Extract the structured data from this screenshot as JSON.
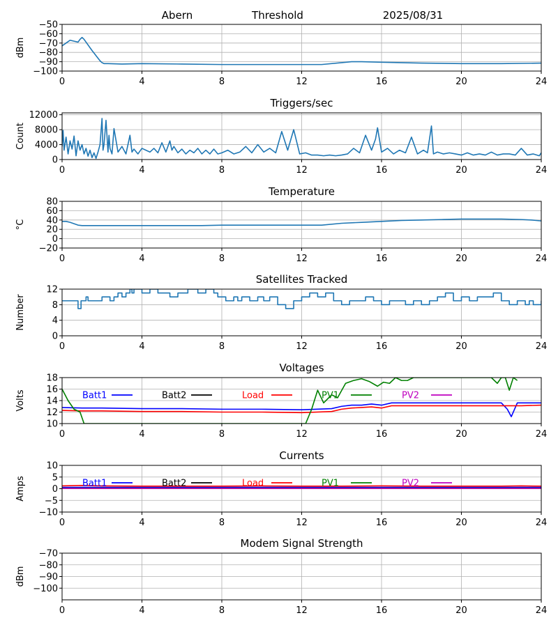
{
  "header": {
    "station": "Abern",
    "plot_name": "Threshold",
    "date": "2025/08/31"
  },
  "chart_data": [
    {
      "id": "threshold",
      "type": "line",
      "title": "",
      "xlabel": "",
      "ylabel": "dBm",
      "xlim": [
        0,
        24
      ],
      "ylim": [
        -100,
        -50
      ],
      "xticks": [
        0,
        4,
        8,
        12,
        16,
        20,
        24
      ],
      "yticks": [
        -100,
        -90,
        -80,
        -70,
        -60,
        -50
      ],
      "grid": true,
      "series": [
        {
          "color": "#1f77b4",
          "x": [
            0,
            0.2,
            0.4,
            0.6,
            0.8,
            0.9,
            1.0,
            1.1,
            1.5,
            1.9,
            2.0,
            2.1,
            2.3,
            3,
            4,
            6,
            8,
            10,
            12,
            13,
            14,
            14.5,
            15,
            16,
            17,
            18,
            20,
            22,
            24
          ],
          "y": [
            -73,
            -70,
            -67,
            -68,
            -69,
            -66,
            -64,
            -66,
            -78,
            -89,
            -91,
            -92,
            -92,
            -92.5,
            -92,
            -92.5,
            -93,
            -93,
            -93,
            -93,
            -91,
            -90,
            -90,
            -90.5,
            -91,
            -91.5,
            -92,
            -92,
            -91.5
          ]
        }
      ]
    },
    {
      "id": "triggers",
      "type": "line",
      "title": "Triggers/sec",
      "xlabel": "",
      "ylabel": "Count",
      "xlim": [
        0,
        24
      ],
      "ylim": [
        0,
        12500
      ],
      "xticks": [
        0,
        4,
        8,
        12,
        16,
        20,
        24
      ],
      "yticks": [
        0,
        4000,
        8000,
        12000
      ],
      "grid": true,
      "series": [
        {
          "color": "#1f77b4",
          "x": [
            0,
            0.05,
            0.1,
            0.2,
            0.3,
            0.4,
            0.5,
            0.6,
            0.7,
            0.8,
            0.9,
            1.0,
            1.1,
            1.2,
            1.3,
            1.4,
            1.5,
            1.6,
            1.7,
            1.8,
            1.9,
            2.0,
            2.05,
            2.1,
            2.2,
            2.3,
            2.35,
            2.4,
            2.5,
            2.6,
            2.8,
            3.0,
            3.2,
            3.4,
            3.5,
            3.6,
            3.8,
            4.0,
            4.2,
            4.4,
            4.6,
            4.8,
            5.0,
            5.2,
            5.4,
            5.5,
            5.6,
            5.8,
            6.0,
            6.2,
            6.4,
            6.6,
            6.8,
            7.0,
            7.2,
            7.4,
            7.6,
            7.8,
            8.0,
            8.3,
            8.6,
            8.9,
            9.2,
            9.5,
            9.8,
            10.1,
            10.4,
            10.7,
            11.0,
            11.3,
            11.6,
            11.9,
            12.2,
            12.5,
            12.8,
            13.1,
            13.4,
            13.7,
            14.0,
            14.3,
            14.6,
            14.9,
            15.2,
            15.5,
            15.7,
            15.8,
            16.0,
            16.3,
            16.6,
            16.9,
            17.2,
            17.5,
            17.8,
            18.1,
            18.3,
            18.5,
            18.6,
            18.8,
            19.1,
            19.4,
            19.7,
            20.0,
            20.3,
            20.6,
            20.9,
            21.2,
            21.5,
            21.8,
            22.1,
            22.4,
            22.7,
            23.0,
            23.3,
            23.6,
            23.9,
            24.0
          ],
          "y": [
            3500,
            7800,
            2500,
            6000,
            1500,
            5000,
            2800,
            6300,
            1000,
            5000,
            2500,
            4000,
            1500,
            3000,
            900,
            2500,
            500,
            1800,
            300,
            2000,
            4000,
            11000,
            2500,
            4000,
            10500,
            2000,
            6500,
            3000,
            1500,
            8300,
            2000,
            3500,
            1500,
            6500,
            2000,
            2800,
            1500,
            3000,
            2500,
            2000,
            3000,
            1800,
            4500,
            2000,
            5000,
            2500,
            3500,
            1800,
            2800,
            1500,
            2500,
            1800,
            3000,
            1500,
            2500,
            1500,
            2800,
            1500,
            1800,
            2500,
            1500,
            2000,
            3500,
            1800,
            4000,
            2000,
            3000,
            1800,
            7500,
            2500,
            8000,
            1500,
            1800,
            1200,
            1200,
            1000,
            1200,
            1000,
            1200,
            1500,
            3000,
            1800,
            6500,
            2500,
            5500,
            8500,
            2000,
            3000,
            1500,
            2500,
            1800,
            6000,
            1500,
            2500,
            1800,
            9000,
            1500,
            2000,
            1500,
            1800,
            1500,
            1200,
            1800,
            1200,
            1500,
            1200,
            2000,
            1200,
            1500,
            1500,
            1200,
            3000,
            1200,
            1500,
            1000,
            1800
          ]
        }
      ]
    },
    {
      "id": "temperature",
      "type": "line",
      "title": "Temperature",
      "xlabel": "",
      "ylabel": "°C",
      "xlim": [
        0,
        24
      ],
      "ylim": [
        -20,
        80
      ],
      "xticks": [
        0,
        4,
        8,
        12,
        16,
        20,
        24
      ],
      "yticks": [
        -20,
        0,
        20,
        40,
        60,
        80
      ],
      "grid": true,
      "series": [
        {
          "color": "#1f77b4",
          "x": [
            0,
            0.2,
            0.4,
            0.6,
            0.8,
            1.0,
            2,
            3,
            4,
            5,
            6,
            7,
            8,
            9,
            10,
            11,
            12,
            13,
            14,
            15,
            16,
            17,
            18,
            19,
            20,
            21,
            22,
            23,
            23.5,
            24
          ],
          "y": [
            37,
            37,
            35,
            32,
            29,
            28,
            28,
            28,
            28,
            28,
            28,
            28,
            29,
            29,
            29,
            29,
            29,
            29,
            33,
            35,
            37,
            39,
            40,
            41,
            42,
            42,
            42,
            41,
            40,
            38
          ]
        }
      ]
    },
    {
      "id": "satellites",
      "type": "line",
      "title": "Satellites Tracked",
      "xlabel": "",
      "ylabel": "Number",
      "xlim": [
        0,
        24
      ],
      "ylim": [
        0,
        12
      ],
      "xticks": [
        0,
        4,
        8,
        12,
        16,
        20,
        24
      ],
      "yticks": [
        0,
        4,
        8,
        12
      ],
      "grid": true,
      "series": [
        {
          "color": "#1f77b4",
          "step": true,
          "x": [
            0,
            0.8,
            0.95,
            1.1,
            1.2,
            1.3,
            1.7,
            2.0,
            2.4,
            2.6,
            2.8,
            3.0,
            3.2,
            3.4,
            3.5,
            3.6,
            4.0,
            4.4,
            4.8,
            5.0,
            5.4,
            5.8,
            6.0,
            6.3,
            6.8,
            7.2,
            7.6,
            7.8,
            8.2,
            8.6,
            8.8,
            9.0,
            9.4,
            9.8,
            10.1,
            10.4,
            10.8,
            11.2,
            11.6,
            12.0,
            12.4,
            12.8,
            13.2,
            13.6,
            14.0,
            14.4,
            14.8,
            15.2,
            15.6,
            16.0,
            16.4,
            16.8,
            17.2,
            17.6,
            18.0,
            18.4,
            18.8,
            19.2,
            19.6,
            20.0,
            20.4,
            20.8,
            21.2,
            21.6,
            22.0,
            22.4,
            22.8,
            23.2,
            23.4,
            23.6,
            24.0
          ],
          "y": [
            9,
            7,
            9,
            9,
            10,
            9,
            9,
            10,
            9,
            10,
            11,
            10,
            11,
            12,
            11,
            12,
            11,
            12,
            11,
            11,
            10,
            11,
            11,
            12,
            11,
            12,
            11,
            10,
            9,
            10,
            9,
            10,
            9,
            10,
            9,
            10,
            8,
            7,
            9,
            10,
            11,
            10,
            11,
            9,
            8,
            9,
            9,
            10,
            9,
            8,
            9,
            9,
            8,
            9,
            8,
            9,
            10,
            11,
            9,
            10,
            9,
            10,
            10,
            11,
            9,
            8,
            9,
            8,
            9,
            8,
            9
          ]
        }
      ]
    },
    {
      "id": "voltages",
      "type": "line",
      "title": "Voltages",
      "xlabel": "",
      "ylabel": "Volts",
      "xlim": [
        0,
        24
      ],
      "ylim": [
        10,
        18
      ],
      "xticks": [
        0,
        4,
        8,
        12,
        16,
        20,
        24
      ],
      "yticks": [
        10,
        12,
        14,
        16,
        18
      ],
      "grid": true,
      "legend": "inside-top",
      "series": [
        {
          "name": "Batt1",
          "color": "#0000ff",
          "x": [
            0,
            1,
            2,
            4,
            6,
            8,
            10,
            12,
            13.5,
            14,
            14.5,
            15,
            15.5,
            16,
            16.5,
            17,
            18,
            20,
            22,
            22.3,
            22.5,
            22.8,
            23,
            24
          ],
          "y": [
            12.8,
            12.7,
            12.7,
            12.6,
            12.6,
            12.5,
            12.5,
            12.4,
            12.6,
            13.0,
            13.2,
            13.2,
            13.4,
            13.2,
            13.6,
            13.6,
            13.6,
            13.6,
            13.6,
            12.5,
            11.2,
            13.6,
            13.6,
            13.6
          ]
        },
        {
          "name": "Load",
          "color": "#ff0000",
          "x": [
            0,
            1,
            2,
            4,
            6,
            8,
            10,
            12,
            13.5,
            14,
            14.5,
            15,
            15.5,
            16,
            16.5,
            17,
            18,
            20,
            22,
            23,
            24
          ],
          "y": [
            12.3,
            12.2,
            12.2,
            12.1,
            12.1,
            12.0,
            12.0,
            11.9,
            12.1,
            12.5,
            12.7,
            12.8,
            12.9,
            12.7,
            13.1,
            13.1,
            13.1,
            13.1,
            13.1,
            13.1,
            13.2
          ]
        },
        {
          "name": "PV1",
          "color": "#008000",
          "x": [
            0,
            0.3,
            0.6,
            0.9,
            1.1,
            12.2,
            12.5,
            12.8,
            13.1,
            13.5,
            13.8,
            14.2,
            14.6,
            15.0,
            15.4,
            15.8,
            16.1,
            16.4,
            16.7,
            17.0,
            17.3,
            17.6,
            21.5,
            21.8,
            22.0,
            22.2,
            22.4,
            22.6,
            22.8
          ],
          "y": [
            16,
            14,
            12.5,
            12,
            10,
            10,
            12.5,
            15.8,
            13.6,
            15,
            14.5,
            17,
            17.5,
            17.8,
            17.3,
            16.5,
            17.2,
            17,
            18,
            17.5,
            17.5,
            18,
            18,
            17,
            18,
            18,
            15.8,
            18,
            17.5
          ]
        },
        {
          "name": "Batt2",
          "color": "#000000",
          "x": [],
          "y": []
        },
        {
          "name": "PV2",
          "color": "#bf00bf",
          "x": [],
          "y": []
        }
      ]
    },
    {
      "id": "currents",
      "type": "line",
      "title": "Currents",
      "xlabel": "",
      "ylabel": "Amps",
      "xlim": [
        0,
        24
      ],
      "ylim": [
        -10,
        10
      ],
      "xticks": [
        0,
        4,
        8,
        12,
        16,
        20,
        24
      ],
      "yticks": [
        -10,
        -5,
        0,
        5,
        10
      ],
      "grid": true,
      "legend": "inside-top",
      "series": [
        {
          "name": "Batt1",
          "color": "#0000ff",
          "x": [
            0,
            4,
            8,
            12,
            16,
            20,
            24
          ],
          "y": [
            0.6,
            0.6,
            0.6,
            0.6,
            0.6,
            0.6,
            0.6
          ]
        },
        {
          "name": "PV1",
          "color": "#008000",
          "x": [
            0,
            4,
            8,
            12,
            16,
            20,
            24
          ],
          "y": [
            0.2,
            0.2,
            0.2,
            0.2,
            0.2,
            0.2,
            0.2
          ]
        },
        {
          "name": "PV2",
          "color": "#bf00bf",
          "x": [
            0,
            4,
            8,
            12,
            16,
            20,
            24
          ],
          "y": [
            0.1,
            0.1,
            0.1,
            0.1,
            0.1,
            0.1,
            0.1
          ]
        },
        {
          "name": "Load",
          "color": "#ff0000",
          "x": [
            0,
            1,
            2,
            4,
            6,
            8,
            10,
            12,
            14,
            16,
            18,
            20,
            22,
            23,
            24
          ],
          "y": [
            1.2,
            1.4,
            1.2,
            1.1,
            1.1,
            1.1,
            1.2,
            1.1,
            1.1,
            1.2,
            1.1,
            1.1,
            1.1,
            1.2,
            1.1
          ]
        },
        {
          "name": "Batt2",
          "color": "#000000",
          "x": [],
          "y": []
        }
      ]
    },
    {
      "id": "modem",
      "type": "line",
      "title": "Modem Signal Strength",
      "xlabel": "",
      "ylabel": "dBm",
      "xlim": [
        0,
        24
      ],
      "ylim": [
        -110,
        -70
      ],
      "xticks": [
        0,
        4,
        8,
        12,
        16,
        20,
        24
      ],
      "yticks": [
        -100,
        -90,
        -80,
        -70
      ],
      "grid": true,
      "series": []
    }
  ],
  "legend_order": [
    "Batt1",
    "Batt2",
    "Load",
    "PV1",
    "PV2"
  ]
}
